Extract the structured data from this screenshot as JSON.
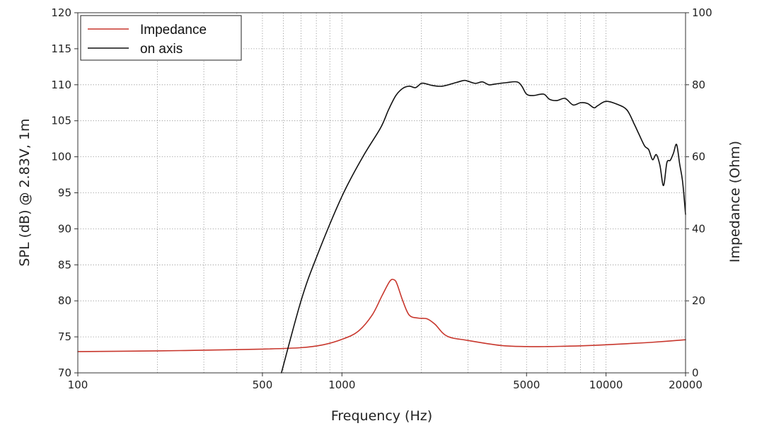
{
  "chart_data": {
    "type": "line",
    "xlabel": "Frequency (Hz)",
    "ylabel": "SPL (dB) @ 2.83V, 1m",
    "y2label": "Impedance (Ohm)",
    "xscale": "log",
    "xlim": [
      100,
      20000
    ],
    "ylim": [
      70,
      120
    ],
    "y2lim": [
      0,
      100
    ],
    "grid": "dotted",
    "legend_position": "top-left",
    "x_tick_labels": [
      "100",
      "500",
      "1000",
      "5000",
      "10000",
      "20000"
    ],
    "x_ticks": [
      100,
      500,
      1000,
      5000,
      10000,
      20000
    ],
    "y_ticks": [
      70,
      75,
      80,
      85,
      90,
      95,
      100,
      105,
      110,
      115,
      120
    ],
    "y_tick_labels": [
      "70",
      "75",
      "80",
      "85",
      "90",
      "95",
      "100",
      "105",
      "110",
      "115",
      "120"
    ],
    "y2_ticks": [
      0,
      20,
      40,
      60,
      80,
      100
    ],
    "y2_tick_labels": [
      "0",
      "20",
      "40",
      "60",
      "80",
      "100"
    ],
    "series": [
      {
        "name": "Impedance",
        "axis": "right",
        "color": "#c8372d",
        "x": [
          100,
          200,
          300,
          500,
          700,
          850,
          1000,
          1150,
          1300,
          1420,
          1520,
          1580,
          1620,
          1700,
          1800,
          1950,
          2100,
          2250,
          2500,
          3000,
          4000,
          5000,
          6000,
          7000,
          8000,
          10000,
          12000,
          15000,
          20000
        ],
        "y": [
          5.9,
          6.1,
          6.3,
          6.6,
          7.0,
          7.8,
          9.3,
          11.5,
          16.0,
          21.5,
          25.5,
          25.8,
          24.5,
          20.0,
          16.0,
          15.2,
          15.0,
          13.5,
          10.2,
          9.0,
          7.6,
          7.3,
          7.3,
          7.4,
          7.5,
          7.8,
          8.1,
          8.5,
          9.2
        ]
      },
      {
        "name": "on axis",
        "axis": "left",
        "color": "#111111",
        "x": [
          590,
          700,
          800,
          1000,
          1200,
          1400,
          1500,
          1600,
          1700,
          1800,
          1900,
          2000,
          2100,
          2200,
          2400,
          2700,
          2900,
          3000,
          3200,
          3400,
          3600,
          3800,
          4200,
          4600,
          4800,
          5000,
          5300,
          5800,
          6100,
          6500,
          7000,
          7500,
          8000,
          8500,
          9000,
          9300,
          10000,
          11000,
          12000,
          12800,
          13300,
          14000,
          14500,
          15000,
          15500,
          16000,
          16500,
          17000,
          17500,
          18000,
          18500,
          19000,
          19500,
          20000
        ],
        "y": [
          70.0,
          80.0,
          86.0,
          94.5,
          100.0,
          104.0,
          106.5,
          108.5,
          109.5,
          109.8,
          109.6,
          110.2,
          110.1,
          109.9,
          109.8,
          110.3,
          110.6,
          110.5,
          110.2,
          110.4,
          110.0,
          110.1,
          110.3,
          110.4,
          109.8,
          108.7,
          108.5,
          108.7,
          108.0,
          107.8,
          108.1,
          107.2,
          107.5,
          107.4,
          106.8,
          107.1,
          107.7,
          107.3,
          106.5,
          104.5,
          103.2,
          101.5,
          101.0,
          99.6,
          100.3,
          98.8,
          96.0,
          99.2,
          99.5,
          100.5,
          101.7,
          99.0,
          96.5,
          92.0
        ]
      }
    ]
  }
}
